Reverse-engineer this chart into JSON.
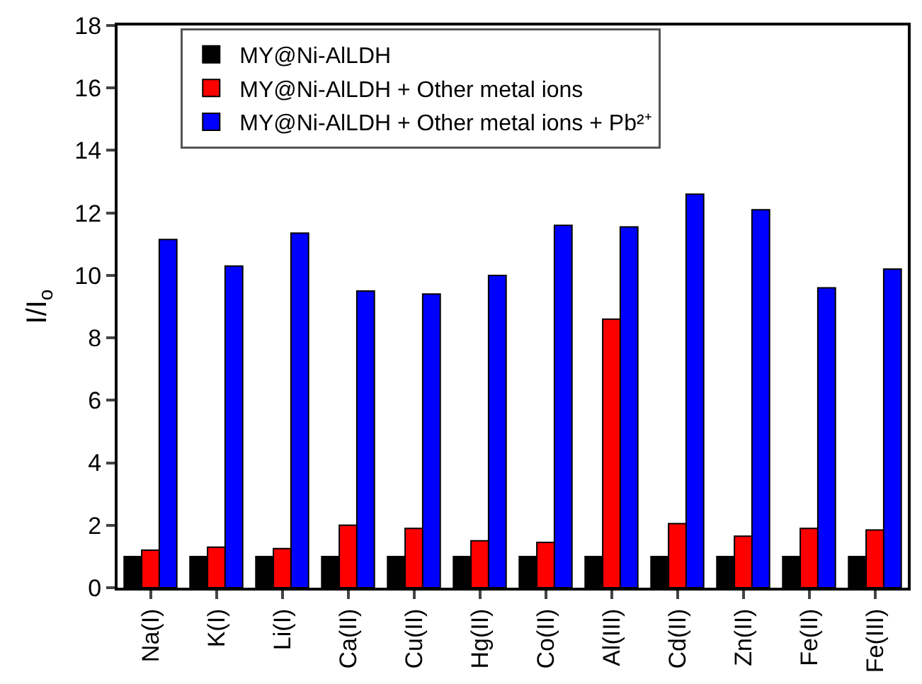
{
  "chart_data": {
    "type": "bar",
    "ylabel": "I/I$_{o}$",
    "categories": [
      "Na(I)",
      "K(I)",
      "Li(I)",
      "Ca(II)",
      "Cu(II)",
      "Hg(II)",
      "Co(II)",
      "Al(III)",
      "Cd(II)",
      "Zn(II)",
      "Fe(II)",
      "Fe(III)"
    ],
    "series": [
      {
        "name": "MY@Ni-AlLDH",
        "color": "#000000",
        "values": [
          1,
          1,
          1,
          1,
          1,
          1,
          1,
          1,
          1,
          1,
          1,
          1
        ]
      },
      {
        "name": "MY@Ni-AlLDH + Other metal ions",
        "color": "#ff0000",
        "values": [
          1.2,
          1.3,
          1.25,
          2,
          1.9,
          1.5,
          1.45,
          8.6,
          2.05,
          1.65,
          1.9,
          1.85
        ]
      },
      {
        "name": "MY@Ni-AlLDH + Other metal ions + Pb²⁺",
        "color": "#0000ff",
        "values": [
          11.15,
          10.3,
          11.35,
          9.5,
          9.4,
          10,
          11.6,
          11.55,
          12.6,
          12.1,
          9.6,
          10.2
        ]
      }
    ],
    "ylim": [
      0,
      18
    ],
    "yticks": [
      0,
      2,
      4,
      6,
      8,
      10,
      12,
      14,
      16,
      18
    ],
    "grid": false,
    "legend": "top"
  }
}
